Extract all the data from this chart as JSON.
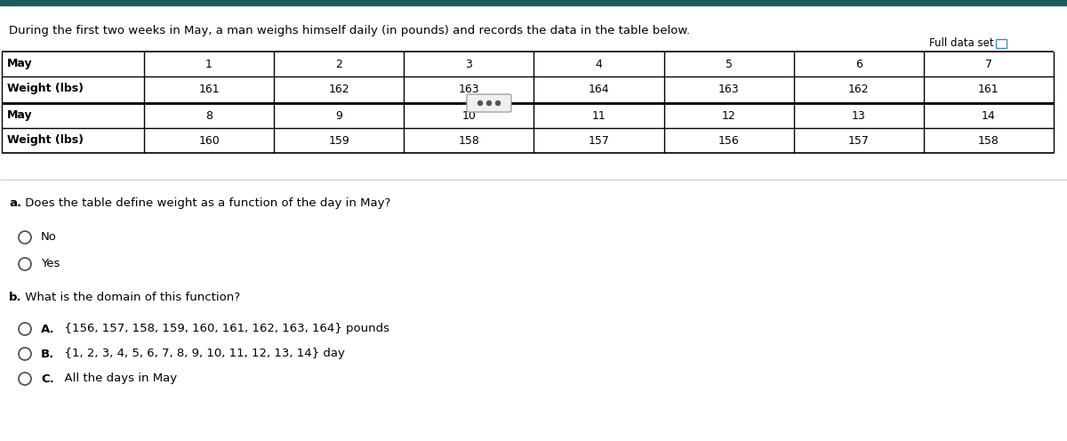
{
  "title": "During the first two weeks in May, a man weighs himself daily (in pounds) and records the data in the table below.",
  "full_data_set_label": "Full data set",
  "table_row1": [
    "May",
    "1",
    "2",
    "3",
    "4",
    "5",
    "6",
    "7"
  ],
  "table_row2": [
    "Weight (lbs)",
    "161",
    "162",
    "163",
    "164",
    "163",
    "162",
    "161"
  ],
  "table_row3": [
    "May",
    "8",
    "9",
    "10",
    "11",
    "12",
    "13",
    "14"
  ],
  "table_row4": [
    "Weight (lbs)",
    "160",
    "159",
    "158",
    "157",
    "156",
    "157",
    "158"
  ],
  "question_a_bold": "a.",
  "question_a_rest": " Does the table define weight as a function of the day in May?",
  "options_a": [
    "No",
    "Yes"
  ],
  "question_b_bold": "b.",
  "question_b_rest": " What is the domain of this function?",
  "options_b_letters": [
    "A.",
    "B.",
    "C."
  ],
  "options_b_texts": [
    "  {156, 157, 158, 159, 160, 161, 162, 163, 164} pounds",
    "  {1, 2, 3, 4, 5, 6, 7, 8, 9, 10, 11, 12, 13, 14} day",
    "  All the days in May"
  ],
  "bg_color": "#ffffff",
  "text_color": "#000000",
  "teal_top": "#1a5c5c",
  "table_border": "#000000",
  "separator_color": "#cccccc",
  "radio_color": "#555555",
  "dots_btn_face": "#f0f0f0",
  "dots_btn_edge": "#999999",
  "dots_color": "#555555",
  "icon_color": "#4488cc"
}
